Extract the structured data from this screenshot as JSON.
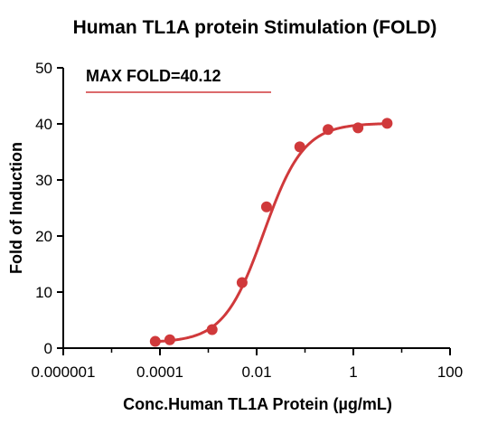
{
  "chart_data": {
    "type": "scatter",
    "title": "Human TL1A protein Stimulation (FOLD)",
    "xlabel": "Conc.Human TL1A Protein (µg/mL)",
    "ylabel": "Fold of Induction",
    "x_scale": "log",
    "xlim": [
      1e-06,
      100
    ],
    "ylim": [
      0,
      50
    ],
    "x_ticks": [
      1e-06,
      0.0001,
      0.01,
      1,
      100
    ],
    "x_tick_labels": [
      "0.000001",
      "0.0001",
      "0.01",
      "1",
      "100"
    ],
    "y_ticks": [
      0,
      10,
      20,
      30,
      40,
      50
    ],
    "y_tick_labels": [
      "0",
      "10",
      "20",
      "30",
      "40",
      "50"
    ],
    "annotation": "MAX FOLD=40.12",
    "color": "#d0393b",
    "grid": false,
    "series": [
      {
        "x": [
          8e-05,
          0.00016,
          0.0012,
          0.005,
          0.016,
          0.078,
          0.3,
          1.25,
          5
        ],
        "y": [
          1.2,
          1.5,
          3.3,
          11.7,
          25.2,
          35.9,
          39.0,
          39.3,
          40.1
        ]
      }
    ],
    "fit": {
      "model": "4PL",
      "bottom": 1.0,
      "top": 40.12,
      "ec50": 0.014,
      "hill": 1.05
    }
  }
}
